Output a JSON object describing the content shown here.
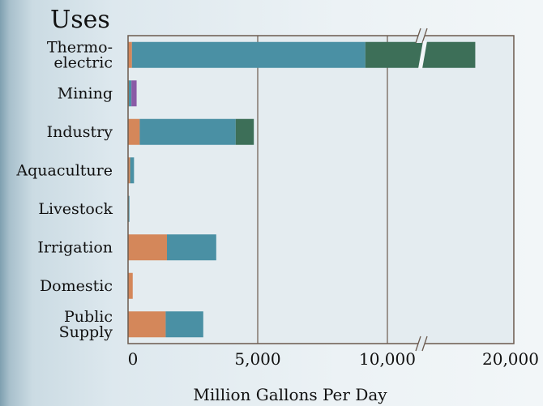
{
  "chart_data": {
    "type": "bar",
    "orientation": "horizontal",
    "stacked": true,
    "title": "Uses",
    "xlabel": "Million Gallons Per Day",
    "ylabel": "",
    "axis_break": "between 10,000 and 20,000",
    "xlim": [
      0,
      20000
    ],
    "xticks": [
      {
        "value": 0,
        "label": "0"
      },
      {
        "value": 5000,
        "label": "5,000"
      },
      {
        "value": 10000,
        "label": "10,000"
      },
      {
        "value": 20000,
        "label": "20,000"
      }
    ],
    "grid": true,
    "categories": [
      {
        "lines": [
          "Thermo-",
          "electric"
        ]
      },
      {
        "lines": [
          "Mining"
        ]
      },
      {
        "lines": [
          "Industry"
        ]
      },
      {
        "lines": [
          "Aquaculture"
        ]
      },
      {
        "lines": [
          "Livestock"
        ]
      },
      {
        "lines": [
          "Irrigation"
        ]
      },
      {
        "lines": [
          "Domestic"
        ]
      },
      {
        "lines": [
          "Public",
          "Supply"
        ]
      }
    ],
    "series": [
      {
        "color": "#d4875a",
        "values": [
          150,
          30,
          450,
          80,
          5,
          1500,
          180,
          1450
        ]
      },
      {
        "color": "#4a90a4",
        "values": [
          9000,
          100,
          3700,
          150,
          30,
          1900,
          0,
          1450
        ]
      },
      {
        "color": "#3d6f58",
        "values": [
          7800,
          0,
          700,
          0,
          0,
          0,
          0,
          0
        ]
      },
      {
        "color": "#8a5aa6",
        "values": [
          0,
          200,
          0,
          0,
          0,
          0,
          0,
          0
        ]
      }
    ]
  }
}
